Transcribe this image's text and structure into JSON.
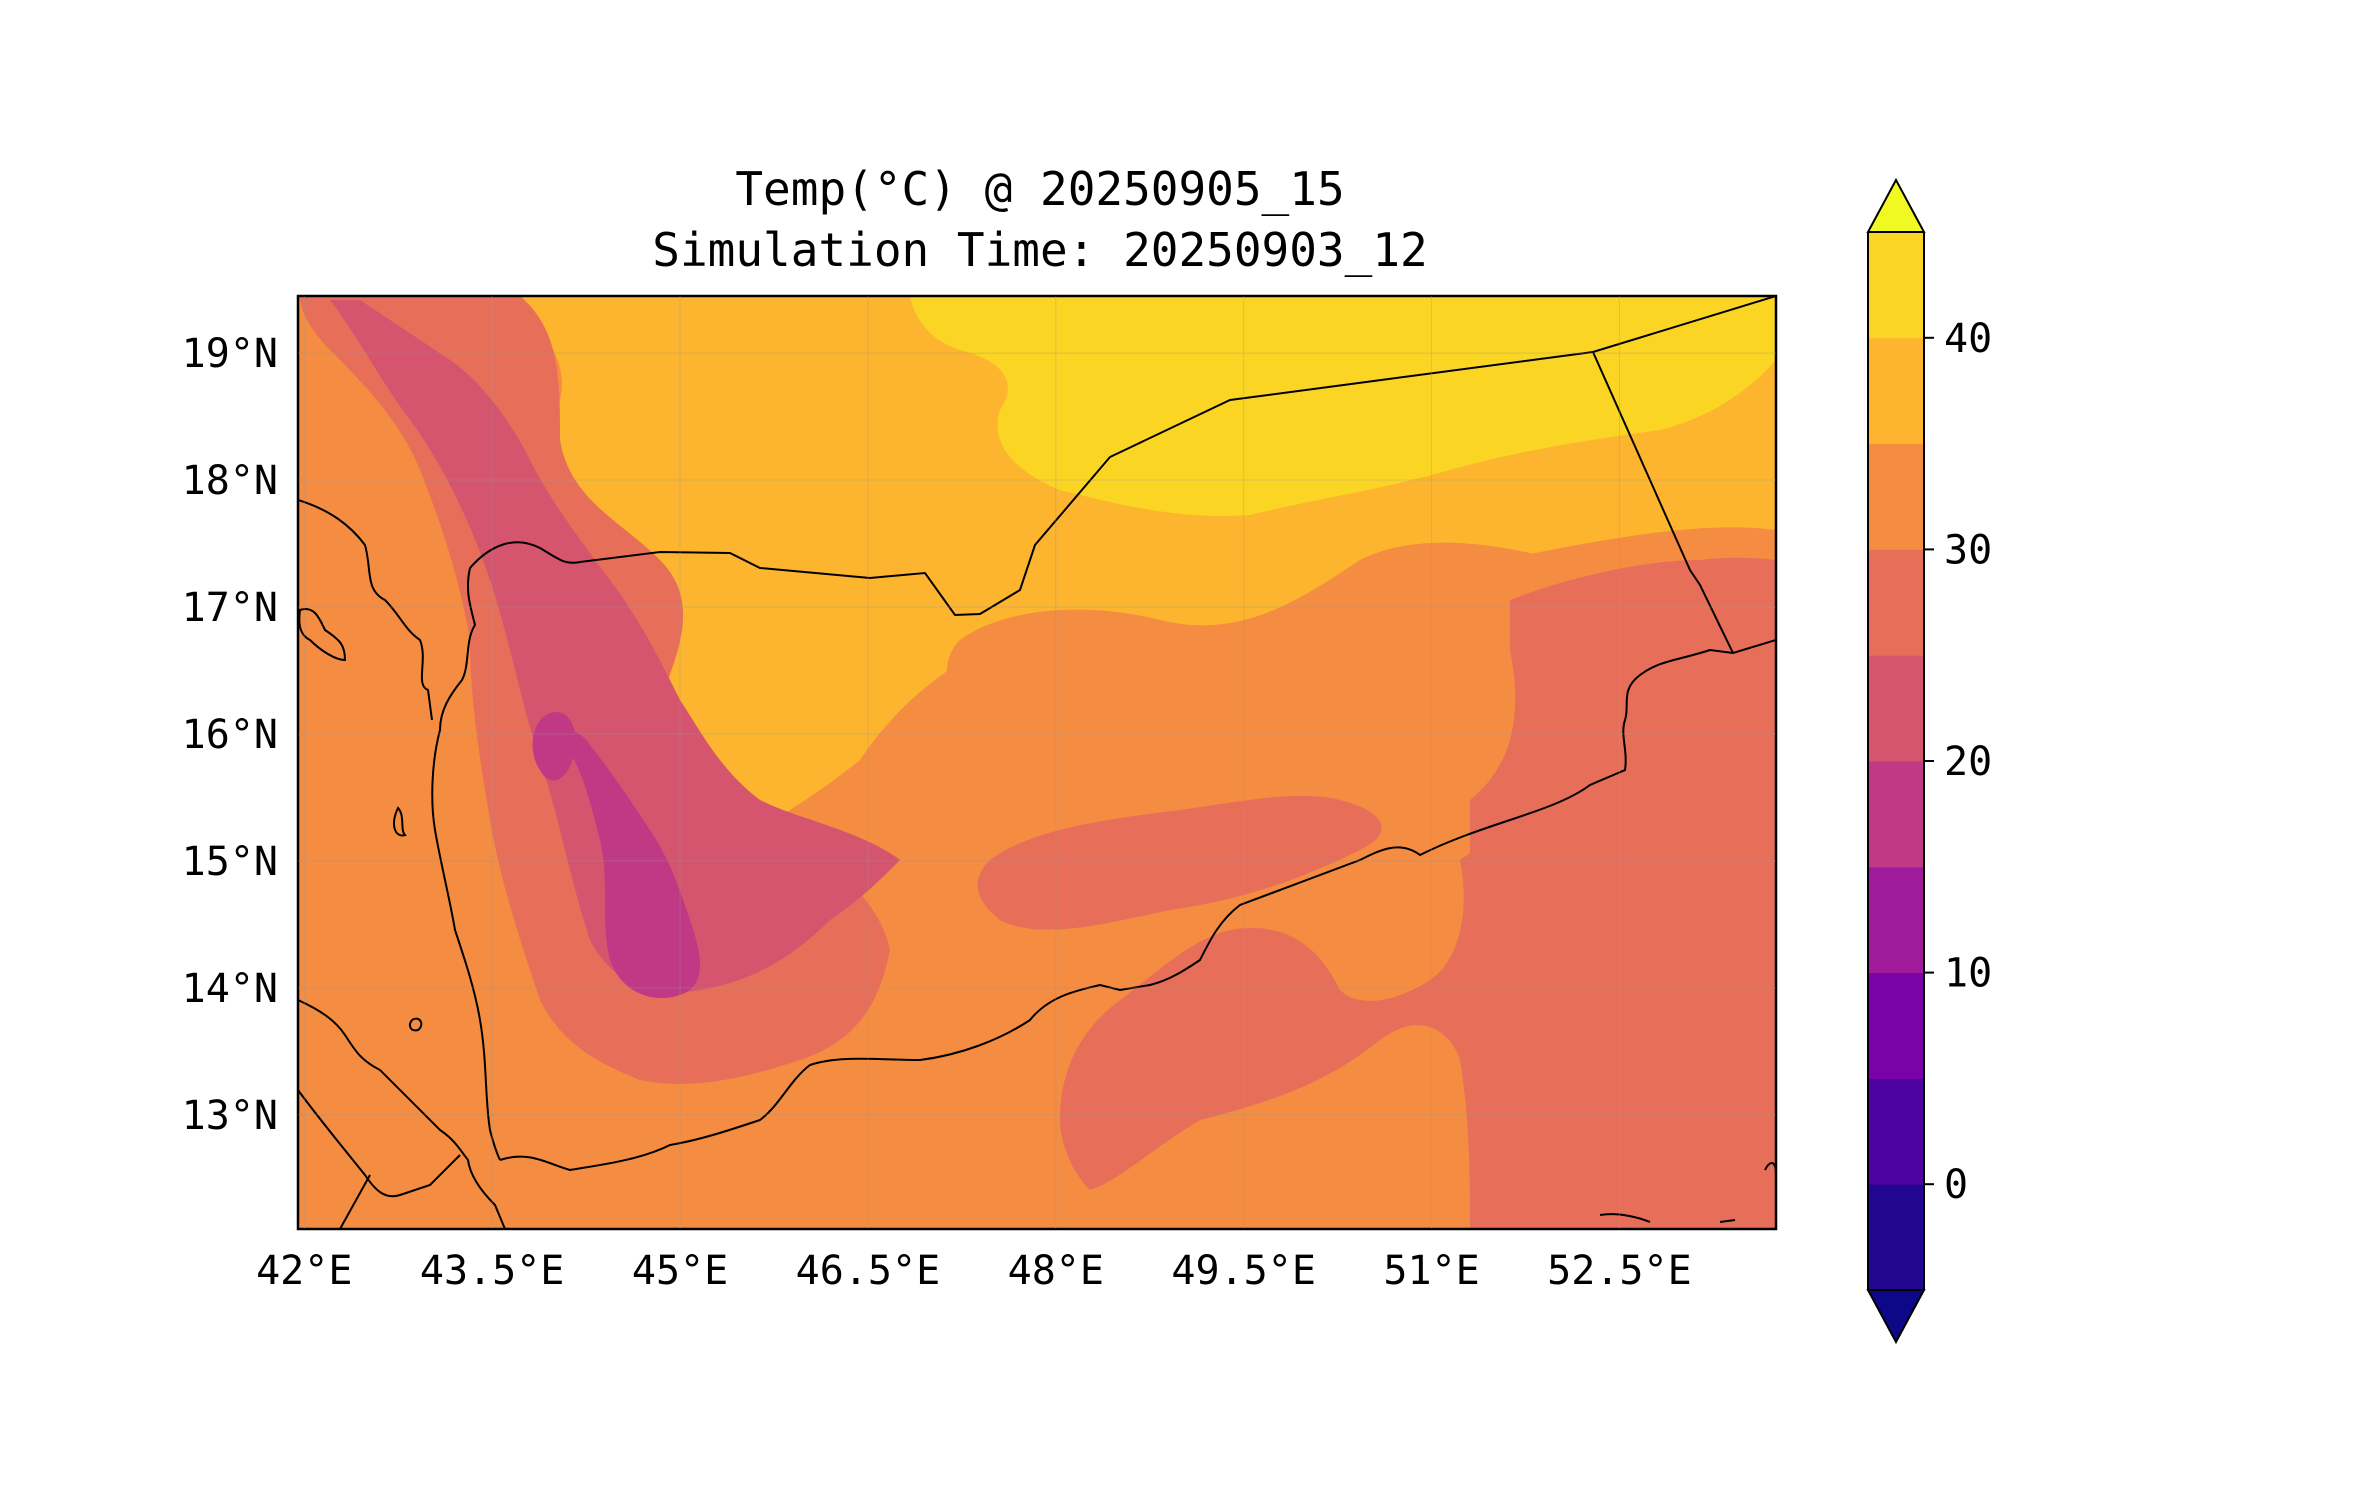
{
  "title_line1": "Temp(°C) @ 20250905_15",
  "title_line2": "Simulation Time: 20250903_12",
  "x_ticks": [
    {
      "lon": 42.0,
      "label": "42°E"
    },
    {
      "lon": 43.5,
      "label": "43.5°E"
    },
    {
      "lon": 45.0,
      "label": "45°E"
    },
    {
      "lon": 46.5,
      "label": "46.5°E"
    },
    {
      "lon": 48.0,
      "label": "48°E"
    },
    {
      "lon": 49.5,
      "label": "49.5°E"
    },
    {
      "lon": 51.0,
      "label": "51°E"
    },
    {
      "lon": 52.5,
      "label": "52.5°E"
    }
  ],
  "y_ticks": [
    {
      "lat": 19,
      "label": "19°N"
    },
    {
      "lat": 18,
      "label": "18°N"
    },
    {
      "lat": 17,
      "label": "17°N"
    },
    {
      "lat": 16,
      "label": "16°N"
    },
    {
      "lat": 15,
      "label": "15°N"
    },
    {
      "lat": 14,
      "label": "14°N"
    },
    {
      "lat": 13,
      "label": "13°N"
    }
  ],
  "colorbar": {
    "levels": [
      -5,
      0,
      5,
      10,
      15,
      20,
      25,
      30,
      35,
      40,
      45
    ],
    "colors": [
      "#220690",
      "#4f02a2",
      "#7a03a8",
      "#a01a9c",
      "#bf3984",
      "#d5546e",
      "#e76f5a",
      "#f48c41",
      "#fdb42f",
      "#fbd524"
    ],
    "under_color": "#0d0887",
    "over_color": "#f0f921",
    "tick_labels": [
      {
        "value": 0,
        "label": "0"
      },
      {
        "value": 10,
        "label": "10"
      },
      {
        "value": 20,
        "label": "20"
      },
      {
        "value": 30,
        "label": "30"
      },
      {
        "value": 40,
        "label": "40"
      }
    ]
  },
  "map": {
    "lon_range": [
      41.95,
      53.75
    ],
    "lat_range": [
      12.1,
      19.45
    ]
  },
  "field_colors": {
    "band_15_20": "#bf3984",
    "band_20_25": "#d5546e",
    "band_25_30": "#e76f5a",
    "band_30_35": "#f48c41",
    "band_35_40": "#fdb42f",
    "band_40_45": "#fbd524"
  }
}
